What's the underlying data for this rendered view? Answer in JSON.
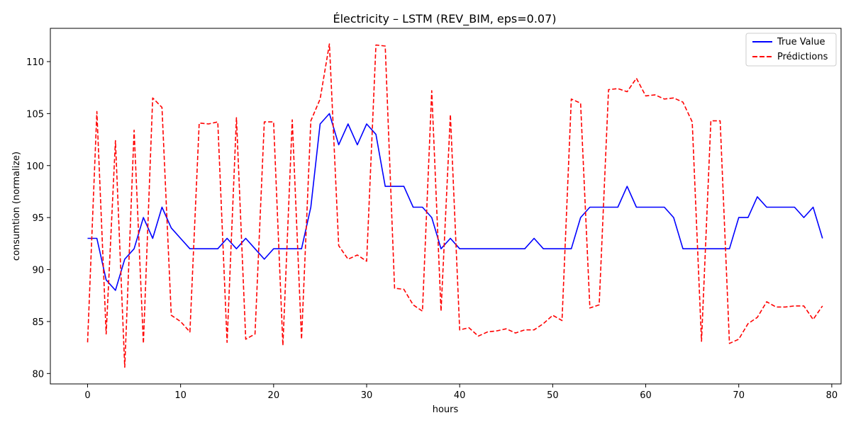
{
  "chart_data": {
    "type": "line",
    "title": "Électricity – LSTM (REV_BIM, eps=0.07)",
    "xlabel": "hours",
    "ylabel": "consumtion (normalize)",
    "xlim": [
      -4,
      81
    ],
    "ylim": [
      79,
      113.2
    ],
    "xticks": [
      0,
      10,
      20,
      30,
      40,
      50,
      60,
      70,
      80
    ],
    "yticks": [
      80,
      85,
      90,
      95,
      100,
      105,
      110
    ],
    "grid": false,
    "legend": "top-right",
    "series": [
      {
        "name": "True Value",
        "color": "#0000ff",
        "style": "solid",
        "x": [
          0,
          1,
          2,
          3,
          4,
          5,
          6,
          7,
          8,
          9,
          10,
          11,
          12,
          13,
          14,
          15,
          16,
          17,
          18,
          19,
          20,
          21,
          22,
          23,
          24,
          25,
          26,
          27,
          28,
          29,
          30,
          31,
          32,
          33,
          34,
          35,
          36,
          37,
          38,
          39,
          40,
          41,
          42,
          43,
          44,
          45,
          46,
          47,
          48,
          49,
          50,
          51,
          52,
          53,
          54,
          55,
          56,
          57,
          58,
          59,
          60,
          61,
          62,
          63,
          64,
          65,
          66,
          67,
          68,
          69,
          70,
          71,
          72,
          73,
          74,
          75,
          76,
          77,
          78,
          79
        ],
        "values": [
          93,
          93,
          89,
          88,
          91,
          92,
          95,
          93,
          96,
          94,
          93,
          92,
          92,
          92,
          92,
          93,
          92,
          93,
          92,
          91,
          92,
          92,
          92,
          92,
          96,
          104,
          105,
          102,
          104,
          102,
          104,
          103,
          98,
          98,
          98,
          96,
          96,
          95,
          92,
          93,
          92,
          92,
          92,
          92,
          92,
          92,
          92,
          92,
          93,
          92,
          92,
          92,
          92,
          95,
          96,
          96,
          96,
          96,
          98,
          96,
          96,
          96,
          96,
          95,
          92,
          92,
          92,
          92,
          92,
          92,
          95,
          95,
          97,
          96,
          96,
          96,
          96,
          95,
          96,
          93
        ]
      },
      {
        "name": "Prédictions",
        "color": "#ff0000",
        "style": "dashed",
        "x": [
          0,
          1,
          2,
          3,
          4,
          5,
          6,
          7,
          8,
          9,
          10,
          11,
          12,
          13,
          14,
          15,
          16,
          17,
          18,
          19,
          20,
          21,
          22,
          23,
          24,
          25,
          26,
          27,
          28,
          29,
          30,
          31,
          32,
          33,
          34,
          35,
          36,
          37,
          38,
          39,
          40,
          41,
          42,
          43,
          44,
          45,
          46,
          47,
          48,
          49,
          50,
          51,
          52,
          53,
          54,
          55,
          56,
          57,
          58,
          59,
          60,
          61,
          62,
          63,
          64,
          65,
          66,
          67,
          68,
          69,
          70,
          71,
          72,
          73,
          74,
          75,
          76,
          77,
          78,
          79
        ],
        "values": [
          83,
          105.2,
          83.8,
          102.4,
          80.6,
          103.4,
          82.9,
          106.5,
          105.6,
          85.6,
          85,
          84,
          104.1,
          104,
          104.2,
          83,
          104.6,
          83.3,
          83.8,
          104.2,
          104.2,
          82.7,
          104.4,
          83.3,
          104.3,
          106.4,
          111.7,
          92.3,
          91,
          91.4,
          90.8,
          111.6,
          111.5,
          88.2,
          88.1,
          86.6,
          86,
          107.2,
          86,
          104.9,
          84.2,
          84.4,
          83.6,
          84,
          84.1,
          84.3,
          83.9,
          84.2,
          84.2,
          84.8,
          85.6,
          85.1,
          106.4,
          106,
          86.3,
          86.6,
          107.3,
          107.4,
          107.1,
          108.4,
          106.7,
          106.8,
          106.4,
          106.5,
          106.1,
          104.2,
          83.1,
          104.3,
          104.3,
          82.9,
          83.3,
          84.8,
          85.4,
          86.9,
          86.4,
          86.4,
          86.5,
          86.5,
          85.2,
          86.5
        ]
      }
    ]
  }
}
